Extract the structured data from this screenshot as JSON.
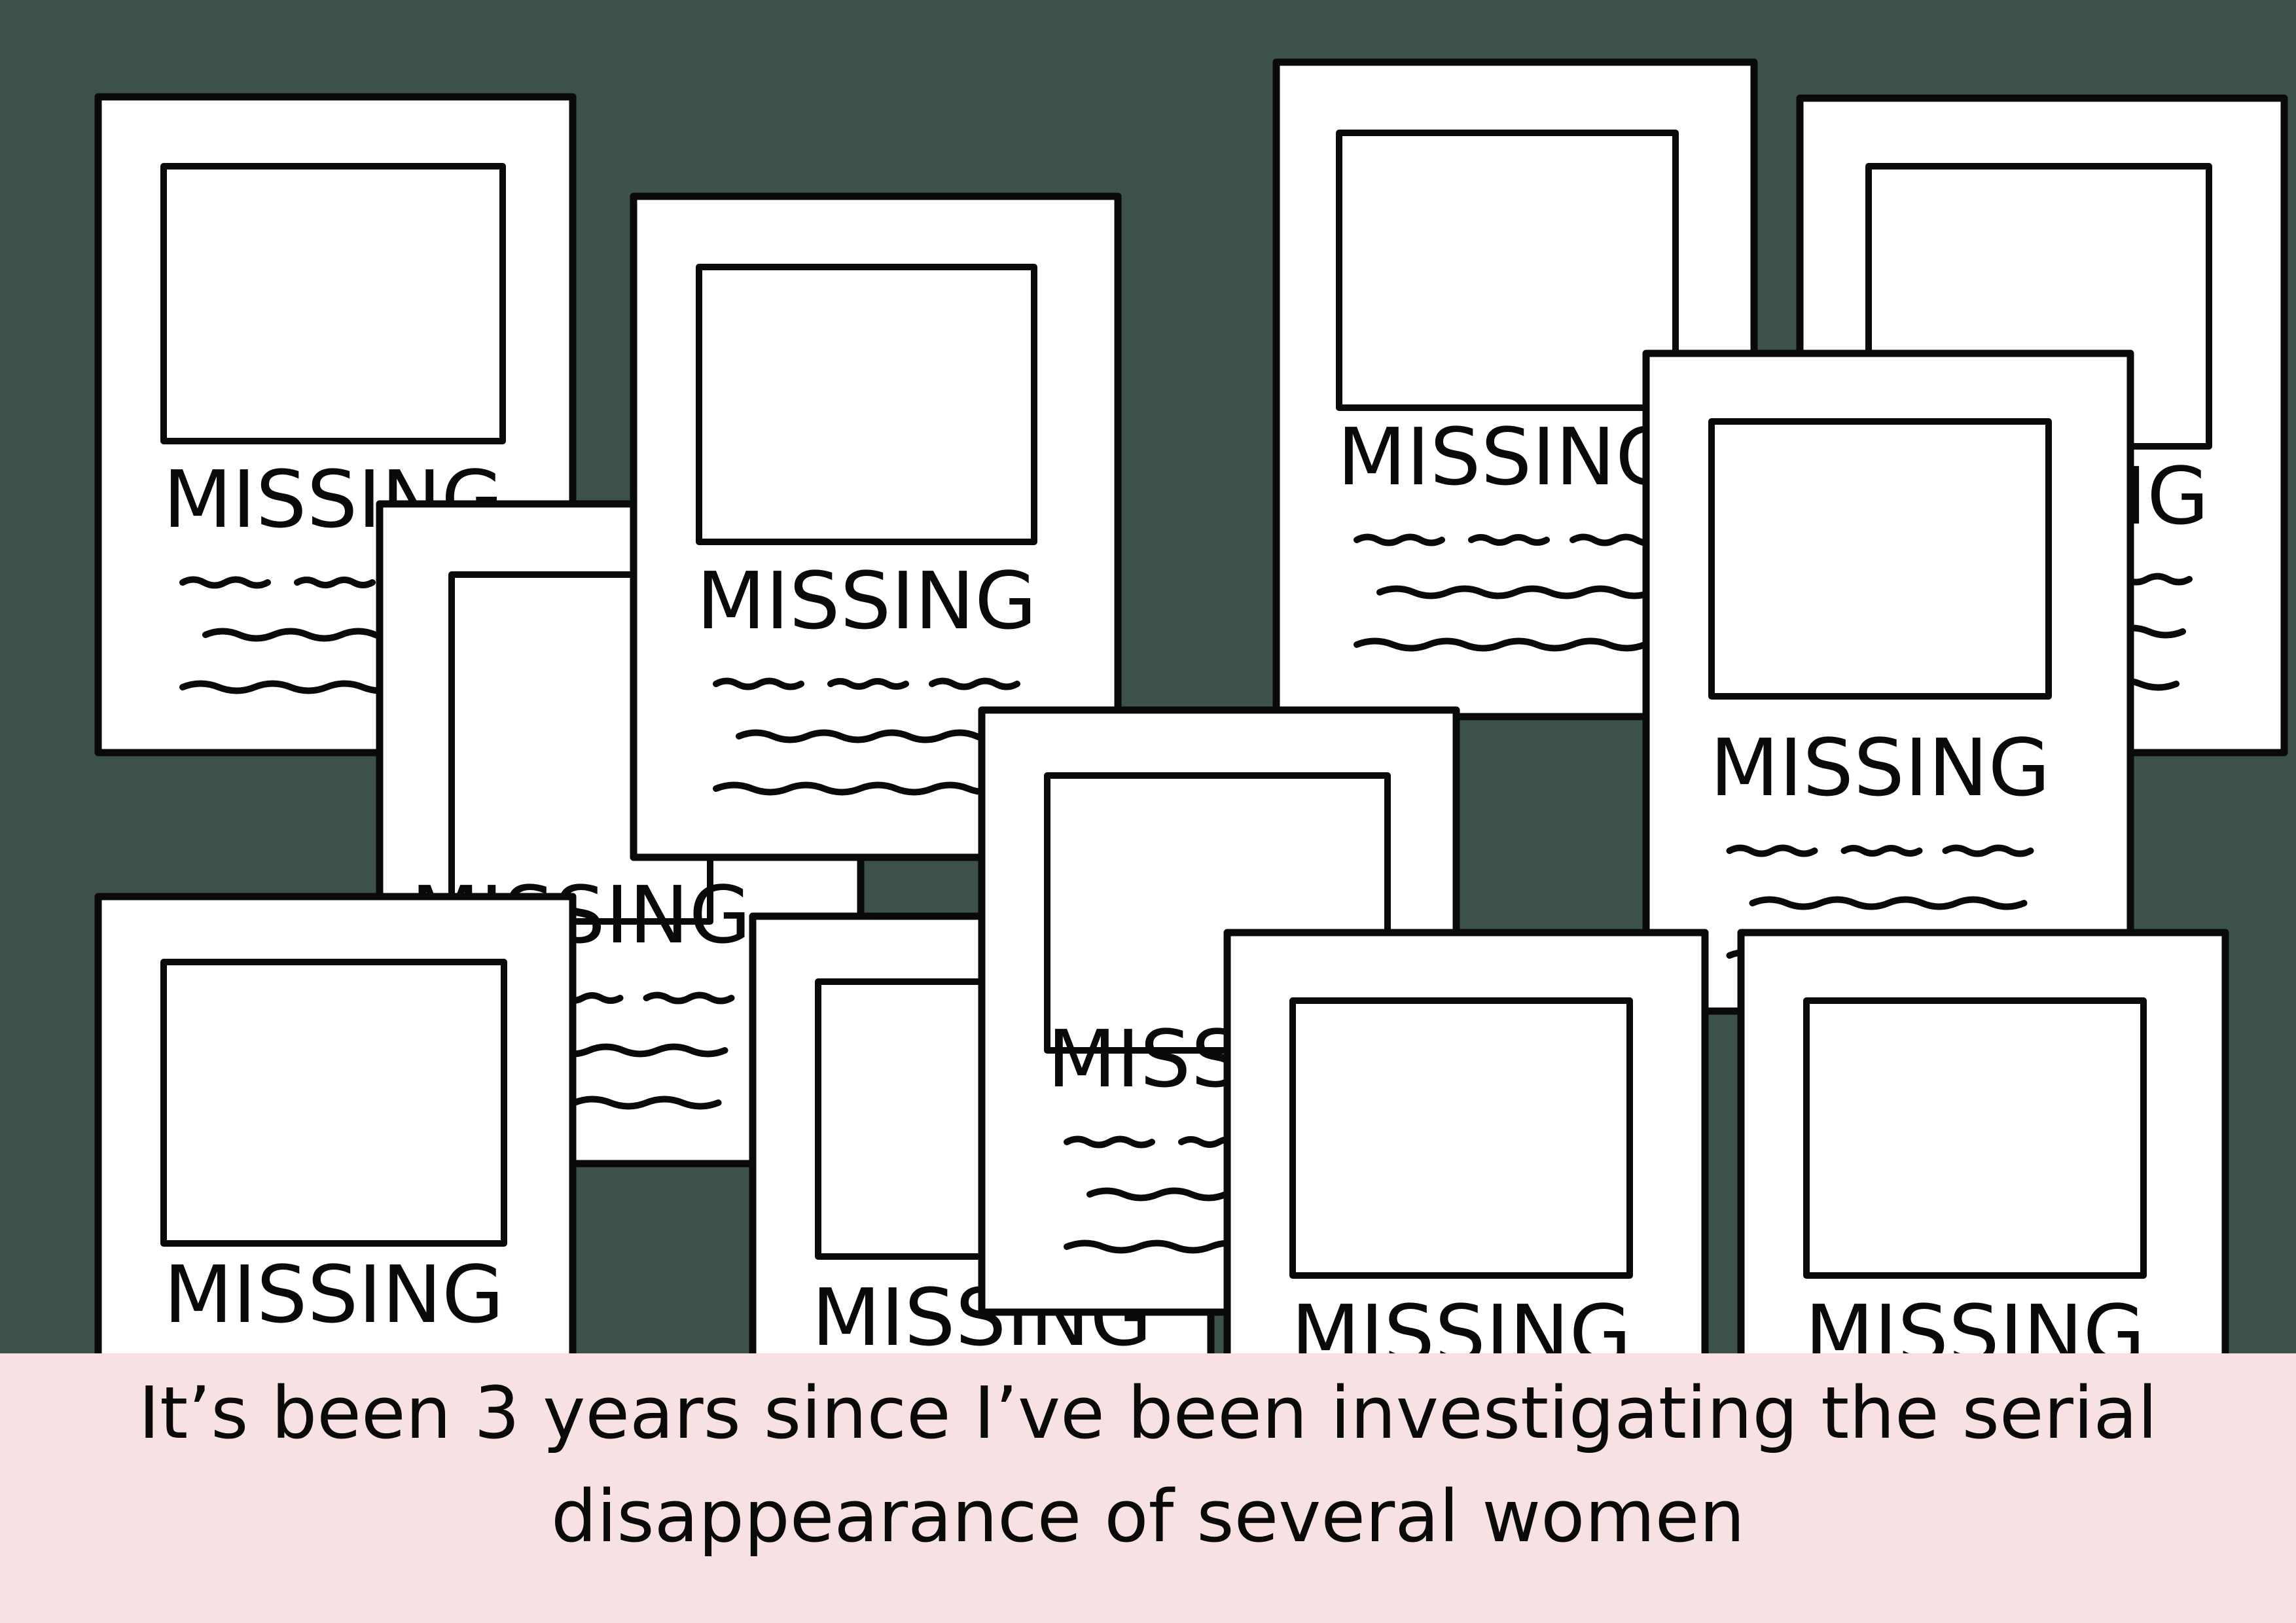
{
  "poster_heading": "MISSING",
  "caption": "It’s been 3 years since I’ve been investigating the serial disappearance of several women",
  "colors": {
    "background": "#3c5148",
    "caption_band": "#f7e1e2",
    "paper": "#ffffff",
    "ink": "#0a0a0a"
  },
  "posters": [
    {
      "name": "poster-top-left"
    },
    {
      "name": "poster-middle-left-back"
    },
    {
      "name": "poster-top-middle-left"
    },
    {
      "name": "poster-top-center"
    },
    {
      "name": "poster-top-right"
    },
    {
      "name": "poster-middle-right-back"
    },
    {
      "name": "poster-bottom-left"
    },
    {
      "name": "poster-bottom-middle-left"
    },
    {
      "name": "poster-bottom-center-back"
    },
    {
      "name": "poster-bottom-center-right"
    },
    {
      "name": "poster-bottom-right"
    }
  ]
}
